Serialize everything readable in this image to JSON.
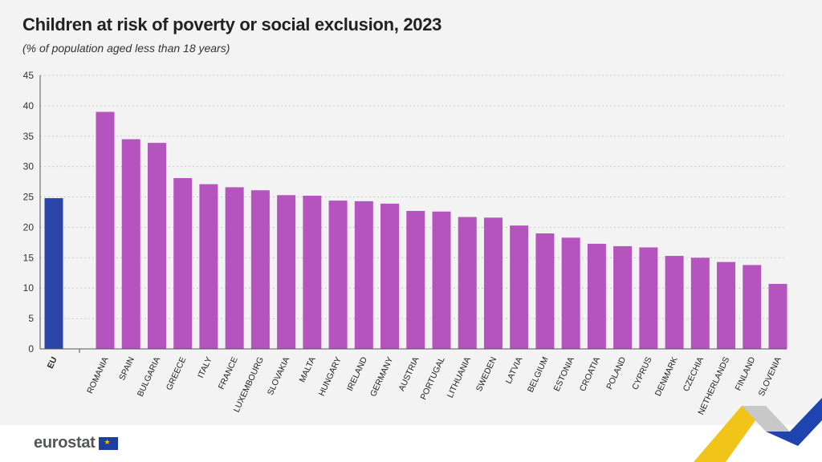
{
  "title": "Children at risk of poverty or social exclusion, 2023",
  "subtitle": "(% of population aged less than 18 years)",
  "logo_text": "eurostat",
  "colors": {
    "eu_bar": "#2a44a8",
    "country_bar": "#b554bf",
    "grid": "#c9c9c9",
    "axis": "#555555"
  },
  "chart_data": {
    "type": "bar",
    "categories": [
      "EU",
      "ROMANIA",
      "SPAIN",
      "BULGARIA",
      "GREECE",
      "ITALY",
      "FRANCE",
      "LUXEMBOURG",
      "SLOVAKIA",
      "MALTA",
      "HUNGARY",
      "IRELAND",
      "GERMANY",
      "AUSTRIA",
      "PORTUGAL",
      "LITHUANIA",
      "SWEDEN",
      "LATVIA",
      "BELGIUM",
      "ESTONIA",
      "CROATIA",
      "POLAND",
      "CYPRUS",
      "DENMARK",
      "CZECHIA",
      "NETHERLANDS",
      "FINLAND",
      "SLOVENIA"
    ],
    "values": [
      24.8,
      39.0,
      34.5,
      33.9,
      28.1,
      27.1,
      26.6,
      26.1,
      25.3,
      25.2,
      24.4,
      24.3,
      23.9,
      22.7,
      22.6,
      21.7,
      21.6,
      20.3,
      19.0,
      18.3,
      17.3,
      16.9,
      16.7,
      15.3,
      15.0,
      14.3,
      13.8,
      10.7
    ],
    "ylim": [
      0,
      45
    ],
    "yticks": [
      0,
      5,
      10,
      15,
      20,
      25,
      30,
      35,
      40,
      45
    ],
    "grid": true
  }
}
